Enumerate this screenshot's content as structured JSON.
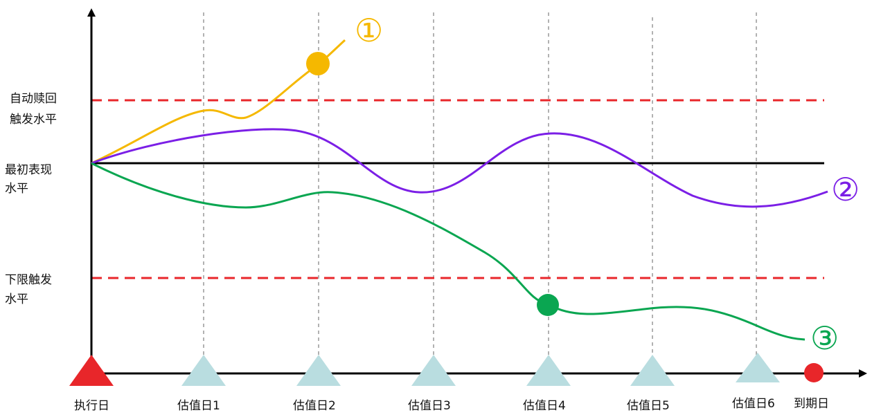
{
  "levels": {
    "autocall": {
      "lines": [
        "自动赎回",
        "触发水平"
      ],
      "color": "#e8262a"
    },
    "initial": {
      "lines": [
        "最初表现",
        "水平"
      ],
      "color": "#000000"
    },
    "knockin": {
      "lines": [
        "下限触发",
        "水平"
      ],
      "color": "#e8262a"
    }
  },
  "timeline": {
    "execution": "执行日",
    "valuation_dates": [
      "估值日1",
      "估值日2",
      "估值日3",
      "估值日4",
      "估值日5",
      "估值日6"
    ],
    "maturity": "到期日"
  },
  "paths": [
    {
      "marker": "①",
      "color": "#f5b800"
    },
    {
      "marker": "②",
      "color": "#7b1fe6"
    },
    {
      "marker": "③",
      "color": "#0aa651"
    }
  ],
  "colors": {
    "triangle": "#b9dde0",
    "start_triangle": "#e8262a",
    "maturity_dot": "#e8262a",
    "grid": "#999999"
  }
}
